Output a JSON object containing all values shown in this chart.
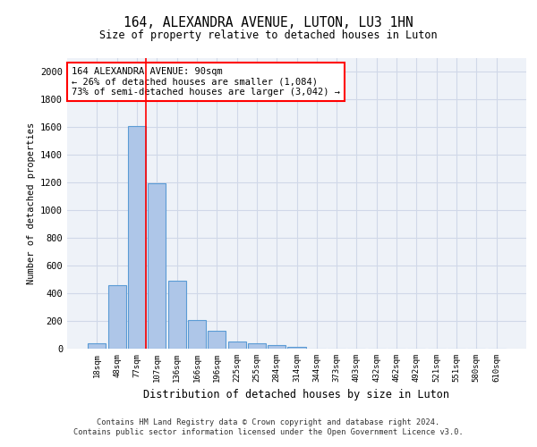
{
  "title": "164, ALEXANDRA AVENUE, LUTON, LU3 1HN",
  "subtitle": "Size of property relative to detached houses in Luton",
  "xlabel": "Distribution of detached houses by size in Luton",
  "ylabel": "Number of detached properties",
  "categories": [
    "18sqm",
    "48sqm",
    "77sqm",
    "107sqm",
    "136sqm",
    "166sqm",
    "196sqm",
    "225sqm",
    "255sqm",
    "284sqm",
    "314sqm",
    "344sqm",
    "373sqm",
    "403sqm",
    "432sqm",
    "462sqm",
    "492sqm",
    "521sqm",
    "551sqm",
    "580sqm",
    "610sqm"
  ],
  "values": [
    40,
    460,
    1610,
    1195,
    490,
    210,
    130,
    50,
    40,
    25,
    15,
    0,
    0,
    0,
    0,
    0,
    0,
    0,
    0,
    0,
    0
  ],
  "bar_color": "#aec6e8",
  "bar_edge_color": "#5b9bd5",
  "grid_color": "#d0d8e8",
  "background_color": "#eef2f8",
  "annotation_text": "164 ALEXANDRA AVENUE: 90sqm\n← 26% of detached houses are smaller (1,084)\n73% of semi-detached houses are larger (3,042) →",
  "annotation_box_color": "white",
  "annotation_box_edge_color": "red",
  "vline_color": "red",
  "vline_x_index": 2,
  "ylim": [
    0,
    2100
  ],
  "yticks": [
    0,
    200,
    400,
    600,
    800,
    1000,
    1200,
    1400,
    1600,
    1800,
    2000
  ],
  "footer_line1": "Contains HM Land Registry data © Crown copyright and database right 2024.",
  "footer_line2": "Contains public sector information licensed under the Open Government Licence v3.0."
}
